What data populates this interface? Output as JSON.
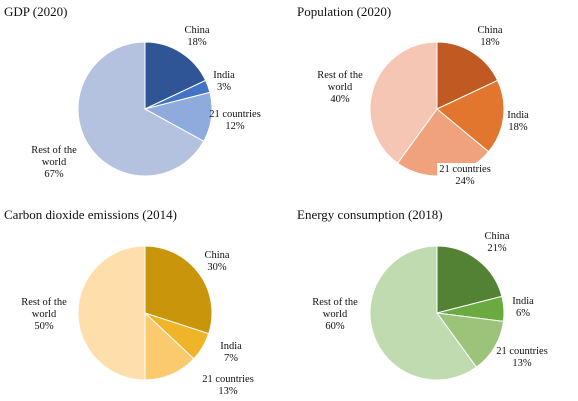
{
  "chart_data": [
    {
      "type": "pie",
      "title": "GDP (2020)",
      "slices": [
        {
          "label": "China",
          "value": 18,
          "value_label": "18%",
          "color": "#2f5597"
        },
        {
          "label": "India",
          "value": 3,
          "value_label": "3%",
          "color": "#4472c4"
        },
        {
          "label": "21 countries",
          "value": 12,
          "value_label": "12%",
          "color": "#8faadc"
        },
        {
          "label": "Rest of the world",
          "value": 67,
          "value_label": "67%",
          "color": "#b4c2e0"
        }
      ]
    },
    {
      "type": "pie",
      "title": "Population (2020)",
      "slices": [
        {
          "label": "China",
          "value": 18,
          "value_label": "18%",
          "color": "#c05a22"
        },
        {
          "label": "India",
          "value": 18,
          "value_label": "18%",
          "color": "#e2762e"
        },
        {
          "label": "21 countries",
          "value": 24,
          "value_label": "24%",
          "color": "#f0a27c"
        },
        {
          "label": "Rest of the world",
          "value": 40,
          "value_label": "40%",
          "color": "#f5c6b4"
        }
      ]
    },
    {
      "type": "pie",
      "title": "Carbon dioxide emissions (2014)",
      "slices": [
        {
          "label": "China",
          "value": 30,
          "value_label": "30%",
          "color": "#c9950a"
        },
        {
          "label": "India",
          "value": 7,
          "value_label": "7%",
          "color": "#f0b429"
        },
        {
          "label": "21 countries",
          "value": 13,
          "value_label": "13%",
          "color": "#fcca6e"
        },
        {
          "label": "Rest of the world",
          "value": 50,
          "value_label": "50%",
          "color": "#fedeab"
        }
      ]
    },
    {
      "type": "pie",
      "title": "Energy consumption (2018)",
      "slices": [
        {
          "label": "China",
          "value": 21,
          "value_label": "21%",
          "color": "#548235"
        },
        {
          "label": "India",
          "value": 6,
          "value_label": "6%",
          "color": "#6aaa40"
        },
        {
          "label": "21 countries",
          "value": 13,
          "value_label": "13%",
          "color": "#9bc37a"
        },
        {
          "label": "Rest of the world",
          "value": 60,
          "value_label": "60%",
          "color": "#c1dbb1"
        }
      ]
    }
  ]
}
